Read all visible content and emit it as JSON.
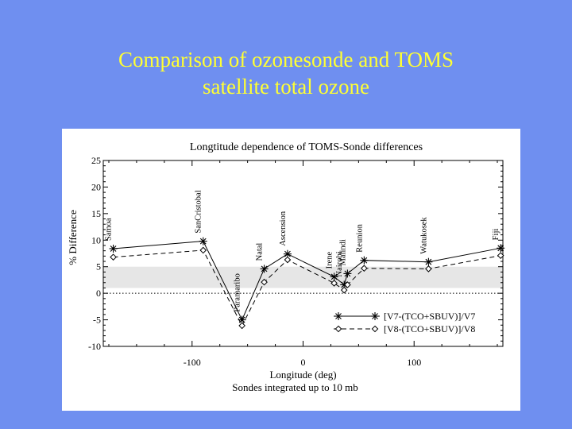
{
  "slide": {
    "title_line1": "Comparison of ozonesonde and TOMS",
    "title_line2": "satellite total ozone"
  },
  "chart_data": {
    "type": "line",
    "title": "Longtitude dependence of TOMS-Sonde differences",
    "xlabel": "Longitude (deg)",
    "ylabel": "% Difference",
    "subtitle": "Sondes integrated up to 10 mb",
    "xlim": [
      -180,
      180
    ],
    "ylim": [
      -10,
      25
    ],
    "xticks": [
      -100,
      0,
      100
    ],
    "yticks": [
      -10,
      -5,
      0,
      5,
      10,
      15,
      20,
      25
    ],
    "shaded_band": [
      1,
      5
    ],
    "reference_line": 0,
    "stations": [
      {
        "name": "Samoa",
        "lon": -171
      },
      {
        "name": "SanCristobal",
        "lon": -90
      },
      {
        "name": "Paramaribo",
        "lon": -55
      },
      {
        "name": "Natal",
        "lon": -35
      },
      {
        "name": "Ascension",
        "lon": -14
      },
      {
        "name": "Irene",
        "lon": 28
      },
      {
        "name": "Nairobi",
        "lon": 37
      },
      {
        "name": "Malindi",
        "lon": 40
      },
      {
        "name": "Reunion",
        "lon": 55
      },
      {
        "name": "Watukosek",
        "lon": 113
      },
      {
        "name": "Fiji",
        "lon": 178
      }
    ],
    "x": [
      -171,
      -90,
      -55,
      -35,
      -14,
      28,
      37,
      40,
      55,
      113,
      178
    ],
    "series": [
      {
        "name": "[V7-(TCO+SBUV)]/V7",
        "marker": "asterisk",
        "line": "solid",
        "values": [
          8.4,
          9.8,
          -5.0,
          4.6,
          7.4,
          3.1,
          1.6,
          3.7,
          6.2,
          5.9,
          8.5
        ]
      },
      {
        "name": "[V8-(TCO+SBUV)]/V8",
        "marker": "diamond",
        "line": "dashed",
        "values": [
          6.8,
          8.1,
          -6.1,
          2.1,
          6.3,
          1.9,
          0.6,
          1.6,
          4.7,
          4.6,
          7.1
        ]
      }
    ]
  }
}
